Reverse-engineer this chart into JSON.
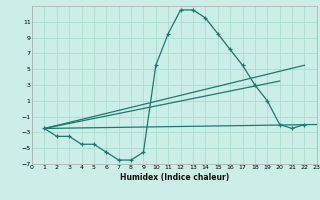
{
  "background_color": "#cceee8",
  "grid_color": "#aaddcc",
  "line_color": "#1a7a6e",
  "xlabel": "Humidex (Indice chaleur)",
  "xlim": [
    0,
    23
  ],
  "ylim": [
    -7,
    13
  ],
  "yticks": [
    -7,
    -5,
    -3,
    -1,
    1,
    3,
    5,
    7,
    9,
    11
  ],
  "xticks": [
    0,
    1,
    2,
    3,
    4,
    5,
    6,
    7,
    8,
    9,
    10,
    11,
    12,
    13,
    14,
    15,
    16,
    17,
    18,
    19,
    20,
    21,
    22,
    23
  ],
  "curve_x": [
    1,
    2,
    3,
    4,
    5,
    6,
    7,
    8,
    9,
    10,
    11,
    12,
    13,
    14,
    15,
    16,
    17,
    18,
    19,
    20,
    21,
    22
  ],
  "curve_y": [
    -2.5,
    -3.5,
    -3.5,
    -4.5,
    -4.5,
    -5.5,
    -6.5,
    -6.5,
    -5.5,
    5.5,
    9.5,
    12.5,
    12.5,
    11.5,
    9.5,
    7.5,
    5.5,
    3.0,
    1.0,
    -2.0,
    -2.5,
    -2.0
  ],
  "line1_x": [
    1,
    23
  ],
  "line1_y": [
    -2.5,
    -2.0
  ],
  "line2_x": [
    1,
    22
  ],
  "line2_y": [
    -2.5,
    5.5
  ],
  "line3_x": [
    1,
    20
  ],
  "line3_y": [
    -2.5,
    3.5
  ]
}
